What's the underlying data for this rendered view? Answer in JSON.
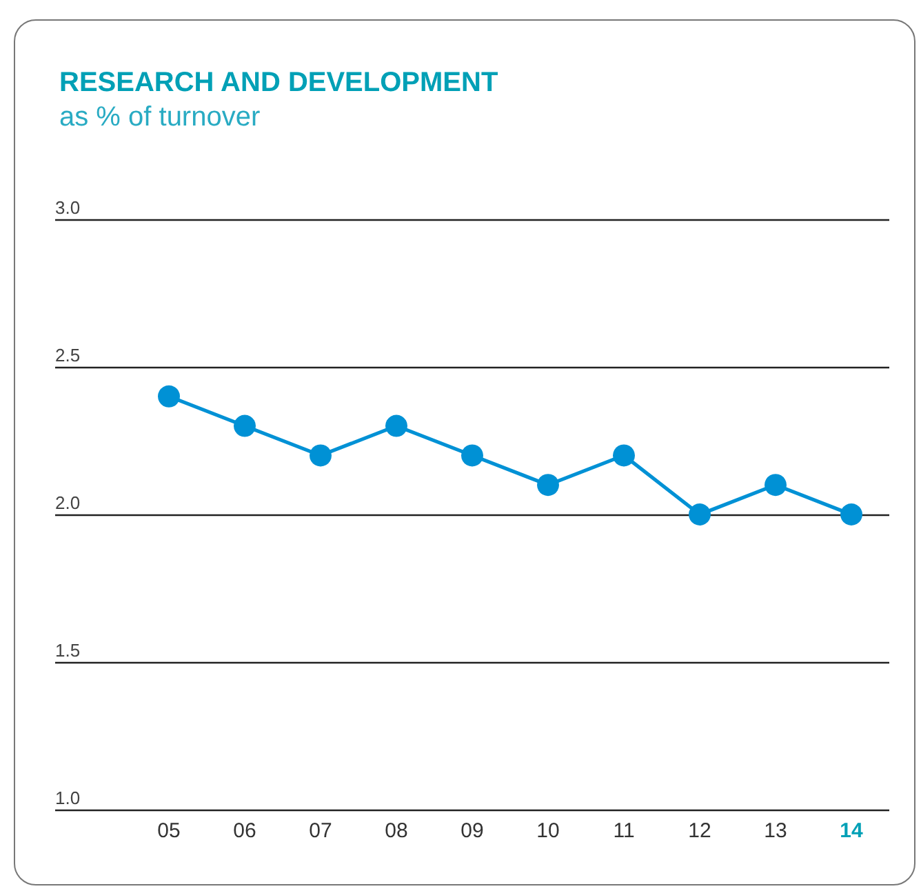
{
  "chart_data": {
    "type": "line",
    "title": "RESEARCH AND DEVELOPMENT",
    "subtitle": "as % of turnover",
    "categories": [
      "05",
      "06",
      "07",
      "08",
      "09",
      "10",
      "11",
      "12",
      "13",
      "14"
    ],
    "values": [
      2.4,
      2.3,
      2.2,
      2.3,
      2.2,
      2.1,
      2.2,
      2.0,
      2.1,
      2.0
    ],
    "color": "#0091d5",
    "ylim": [
      1,
      3
    ],
    "yticks": [
      {
        "value": 1,
        "label": "1.0"
      },
      {
        "value": 1.5,
        "label": "1.5"
      },
      {
        "value": 2,
        "label": "2.0"
      },
      {
        "value": 2.5,
        "label": "2.5"
      },
      {
        "value": 3,
        "label": "3.0"
      }
    ],
    "grid": "y",
    "marker": "circle",
    "line_style": "solid"
  }
}
